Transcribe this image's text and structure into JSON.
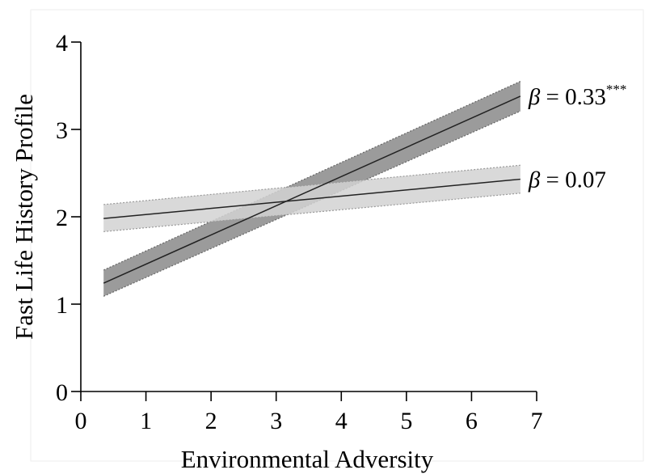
{
  "chart_data": {
    "type": "line",
    "title": "",
    "xlabel": "Environmental Adversity",
    "ylabel": "Fast Life History Profile",
    "xlim": [
      0,
      7
    ],
    "ylim": [
      0,
      4
    ],
    "xticks": [
      0,
      1,
      2,
      3,
      4,
      5,
      6,
      7
    ],
    "yticks": [
      0,
      1,
      2,
      3,
      4
    ],
    "grid": false,
    "legend": "none",
    "series": [
      {
        "label_symbol": "β",
        "label_text": " = 0.33",
        "label_sup": "***",
        "x": [
          0.35,
          6.75
        ],
        "y": [
          1.24,
          3.38
        ],
        "ci_lower": [
          1.09,
          3.21
        ],
        "ci_upper": [
          1.39,
          3.55
        ],
        "line_color": "#222222",
        "band_color": "#8a8a8a",
        "band_edge_color": "#666666"
      },
      {
        "label_symbol": "β",
        "label_text": " = 0.07",
        "label_sup": "",
        "x": [
          0.35,
          6.75
        ],
        "y": [
          1.98,
          2.43
        ],
        "ci_lower": [
          1.83,
          2.27
        ],
        "ci_upper": [
          2.14,
          2.59
        ],
        "line_color": "#333333",
        "band_color": "#d2d2d2",
        "band_edge_color": "#9a9a9a"
      }
    ]
  }
}
